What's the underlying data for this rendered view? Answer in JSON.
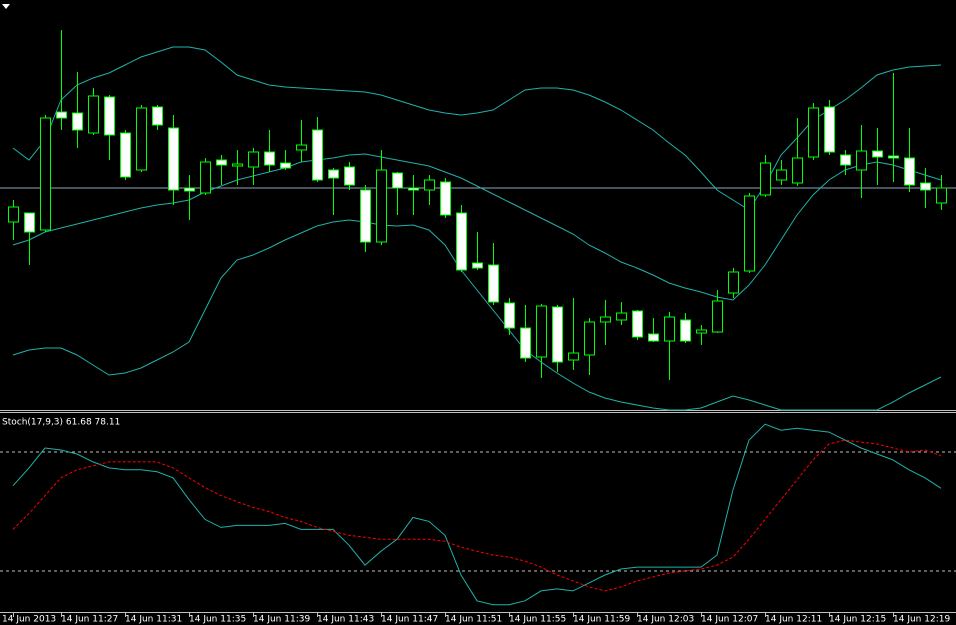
{
  "chart_data": [
    {
      "type": "candlestick",
      "categories": [
        "14 Jun 2013",
        null,
        null,
        "14 Jun 11:27",
        null,
        null,
        null,
        "14 Jun 11:31",
        null,
        null,
        null,
        "14 Jun 11:35",
        null,
        null,
        null,
        "14 Jun 11:39",
        null,
        null,
        null,
        "14 Jun 11:43",
        null,
        null,
        null,
        "14 Jun 11:47",
        null,
        null,
        null,
        "14 Jun 11:51",
        null,
        null,
        null,
        "14 Jun 11:55",
        null,
        null,
        null,
        "14 Jun 11:59",
        null,
        null,
        null,
        "14 Jun 12:03",
        null,
        null,
        null,
        "14 Jun 12:07",
        null,
        null,
        null,
        "14 Jun 12:11",
        null,
        null,
        null,
        "14 Jun 12:15",
        null,
        null,
        null,
        "14 Jun 12:19",
        null,
        null,
        null
      ],
      "open": [
        188,
        197,
        180,
        298,
        297,
        277,
        313,
        277,
        240,
        303,
        282,
        222,
        217,
        250,
        244,
        243,
        258,
        247,
        260,
        280,
        240,
        243,
        220,
        168,
        237,
        222,
        220,
        228,
        197,
        147,
        145,
        107,
        82,
        53,
        103,
        50,
        55,
        88,
        90,
        99,
        76,
        69,
        90,
        77,
        78,
        117,
        139,
        215,
        230,
        227,
        253,
        303,
        255,
        240,
        259,
        254,
        252,
        227,
        207
      ],
      "high": [
        210,
        197,
        295,
        380,
        338,
        322,
        315,
        280,
        305,
        305,
        295,
        235,
        252,
        255,
        260,
        262,
        280,
        260,
        290,
        293,
        242,
        248,
        225,
        260,
        238,
        235,
        235,
        232,
        205,
        178,
        167,
        112,
        105,
        106,
        105,
        112,
        92,
        110,
        108,
        100,
        92,
        98,
        97,
        85,
        120,
        142,
        217,
        255,
        250,
        292,
        307,
        310,
        260,
        285,
        282,
        337,
        282,
        242,
        235
      ],
      "low": [
        170,
        145,
        178,
        280,
        262,
        275,
        250,
        230,
        238,
        280,
        205,
        190,
        215,
        225,
        225,
        225,
        238,
        240,
        248,
        228,
        195,
        220,
        158,
        165,
        195,
        195,
        205,
        192,
        138,
        140,
        105,
        75,
        48,
        32,
        38,
        40,
        35,
        65,
        85,
        70,
        68,
        30,
        67,
        65,
        77,
        112,
        137,
        213,
        225,
        224,
        250,
        255,
        235,
        212,
        225,
        228,
        218,
        202,
        200
      ],
      "close": [
        203,
        178,
        292,
        292,
        280,
        314,
        275,
        233,
        302,
        285,
        220,
        219,
        248,
        245,
        246,
        258,
        245,
        242,
        265,
        230,
        232,
        225,
        168,
        240,
        222,
        220,
        230,
        195,
        140,
        142,
        108,
        82,
        52,
        104,
        48,
        57,
        88,
        93,
        97,
        73,
        69,
        93,
        69,
        80,
        109,
        138,
        214,
        247,
        240,
        252,
        302,
        258,
        245,
        259,
        253,
        252,
        225,
        220,
        222
      ],
      "ylim": [
        0,
        410
      ],
      "bull_color": "#000000",
      "bear_color": "#ffffff",
      "wick_color": "#00ff00",
      "hline": 222,
      "hline_color": "#8fa3b8",
      "series": [
        {
          "color": "#20b2aa",
          "values": [
            262,
            250,
            270,
            310,
            325,
            332,
            337,
            345,
            353,
            358,
            363,
            363,
            360,
            348,
            335,
            330,
            325,
            323,
            322,
            321,
            320,
            319,
            318,
            315,
            310,
            305,
            300,
            297,
            295,
            297,
            300,
            310,
            320,
            322,
            322,
            320,
            315,
            308,
            300,
            290,
            280,
            267,
            255,
            238,
            220,
            210,
            200,
            225,
            255,
            272,
            290,
            300,
            310,
            322,
            335,
            340,
            343,
            344,
            345
          ]
        },
        {
          "color": "#20b2aa",
          "values": [
            165,
            170,
            178,
            182,
            186,
            190,
            194,
            198,
            202,
            205,
            207,
            210,
            218,
            224,
            230,
            234,
            238,
            242,
            248,
            250,
            252,
            255,
            256,
            253,
            250,
            247,
            244,
            238,
            232,
            224,
            216,
            208,
            200,
            192,
            184,
            176,
            165,
            157,
            148,
            142,
            135,
            127,
            122,
            118,
            113,
            110,
            125,
            145,
            170,
            195,
            215,
            230,
            240,
            245,
            248,
            245,
            240,
            235,
            230
          ]
        },
        {
          "color": "#20b2aa",
          "values": [
            55,
            60,
            62,
            62,
            55,
            45,
            35,
            37,
            42,
            50,
            58,
            68,
            100,
            132,
            150,
            155,
            162,
            170,
            177,
            184,
            188,
            190,
            188,
            185,
            184,
            185,
            180,
            165,
            140,
            120,
            100,
            80,
            60,
            48,
            37,
            27,
            18,
            12,
            8,
            5,
            2,
            0,
            0,
            2,
            8,
            14,
            10,
            5,
            0,
            0,
            0,
            0,
            0,
            0,
            0,
            8,
            17,
            25,
            33
          ]
        }
      ]
    },
    {
      "type": "line",
      "title": "Stoch(17,9,3) 61.68 78.11",
      "ylim": [
        0,
        100
      ],
      "levels": [
        80,
        20
      ],
      "level_color": "#c0c0c0",
      "series": [
        {
          "color": "#20b2aa",
          "dash": false,
          "values": [
            63,
            72,
            82,
            81,
            79,
            75,
            72,
            71,
            71,
            70,
            67,
            56,
            46,
            42,
            43,
            43,
            43,
            44,
            41,
            41,
            41,
            33,
            23,
            30,
            36,
            47,
            45,
            38,
            18,
            5,
            3,
            3,
            5,
            10,
            11,
            10,
            14,
            18,
            21,
            22,
            22,
            22,
            22,
            22,
            28,
            61,
            86,
            94,
            91,
            92,
            91,
            90,
            86,
            82,
            79,
            76,
            71,
            67,
            61.68
          ]
        },
        {
          "color": "#ff0000",
          "dash": true,
          "values": [
            41,
            49,
            58,
            67,
            71,
            73,
            75,
            75,
            75,
            75,
            72,
            67,
            62,
            58,
            55,
            52,
            50,
            47,
            45,
            42,
            40,
            38,
            37,
            36,
            36,
            36,
            36,
            35,
            32,
            30,
            28,
            27,
            25,
            22,
            18,
            15,
            12,
            10,
            12,
            15,
            17,
            19,
            20,
            21,
            23,
            27,
            36,
            46,
            56,
            66,
            76,
            84,
            86,
            85,
            84,
            82,
            80,
            81,
            78.11
          ]
        }
      ]
    }
  ]
}
